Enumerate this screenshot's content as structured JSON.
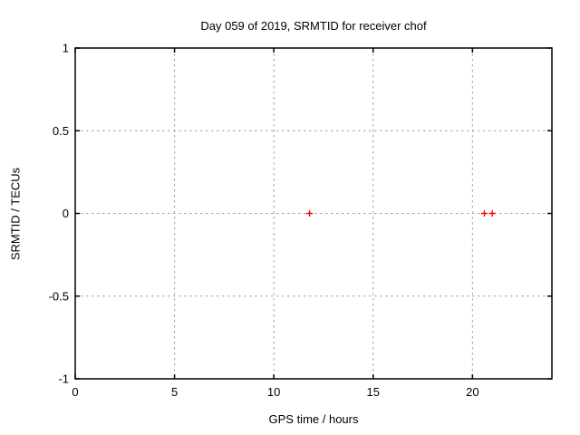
{
  "colors": {
    "background": "#ffffff",
    "axis": "#000000",
    "grid": "#a0a0a0",
    "text": "#000000",
    "marker": "#ff0000"
  },
  "chart_data": {
    "type": "scatter",
    "title": "Day 059 of 2019, SRMTID for receiver chof",
    "xlabel": "GPS time / hours",
    "ylabel": "SRMTID / TECUs",
    "xlim": [
      0,
      24
    ],
    "ylim": [
      -1,
      1
    ],
    "grid": true,
    "legend": false,
    "xticks": [
      {
        "value": 0,
        "label": "0"
      },
      {
        "value": 5,
        "label": "5"
      },
      {
        "value": 10,
        "label": "10"
      },
      {
        "value": 15,
        "label": "15"
      },
      {
        "value": 20,
        "label": "20"
      }
    ],
    "yticks": [
      {
        "value": 1,
        "label": "1"
      },
      {
        "value": 0.5,
        "label": "0.5"
      },
      {
        "value": 0,
        "label": "0"
      },
      {
        "value": -0.5,
        "label": "-0.5"
      },
      {
        "value": -1,
        "label": "-1"
      }
    ],
    "series": [
      {
        "name": "SRMTID",
        "marker": "plus",
        "color": "#ff0000",
        "points": [
          {
            "x": 11.8,
            "y": 0
          },
          {
            "x": 20.6,
            "y": 0
          },
          {
            "x": 21.0,
            "y": 0
          }
        ]
      }
    ]
  }
}
